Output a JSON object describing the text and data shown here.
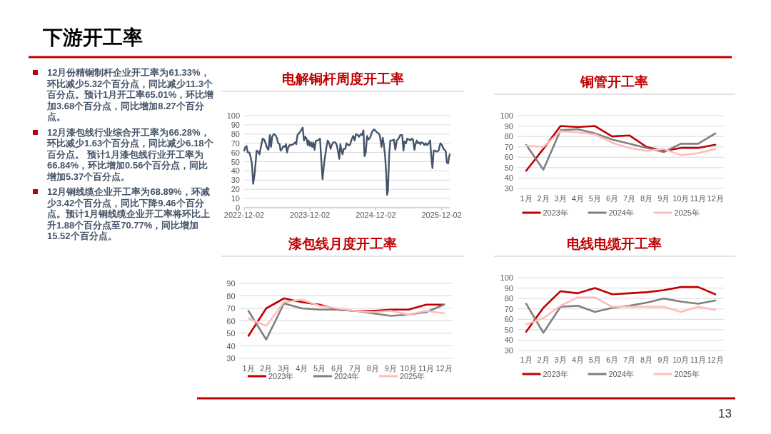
{
  "chart_data": [
    {
      "type": "other",
      "title": "下游开工率",
      "annotations": [
        "12月份精铜制杆企业开工率为61.33%，环比减少5.32个百分点，同比减少11.3个百分点。预计1月开工率65.01%，环比增加3.68个百分点，同比增加8.27个百分点。",
        "12月漆包线行业综合开工率为66.28%，环比减少1.63个百分点，同比减少6.18个百分点。 预计1月漆包线行业开工率为66.84%，环比增加0.56个百分点，同比增加5.37个百分点。",
        "12月铜线缆企业开工率为68.89%，环减少3.42个百分点，同比下降9.46个百分点。预计1月铜线缆企业开工率将环比上升1.88个百分点至70.77%，同比增加15.52个百分点。",
        "13"
      ]
    },
    {
      "type": "line",
      "title": "电解铜杆周度开工率",
      "grid": "y",
      "xlim": [
        "2022-12-02",
        "2026-01-16"
      ],
      "xticks": [
        "2022-12-02",
        "2023-12-02",
        "2024-12-02",
        "2025-12-02"
      ],
      "ylim": [
        0,
        100
      ],
      "yticks": [
        0,
        10,
        20,
        30,
        40,
        50,
        60,
        70,
        80,
        90,
        100
      ],
      "x": [
        "2022-12-02",
        "2022-12-09",
        "2022-12-15",
        "2022-12-22",
        "2022-12-31",
        "2023-01-07",
        "2023-01-14",
        "2023-01-21",
        "2023-01-30",
        "2023-02-09",
        "2023-02-17",
        "2023-02-25",
        "2023-03-04",
        "2023-03-14",
        "2023-03-23",
        "2023-03-31",
        "2023-04-08",
        "2023-04-16",
        "2023-04-24",
        "2023-04-30",
        "2023-05-07",
        "2023-05-15",
        "2023-05-24",
        "2023-06-01",
        "2023-06-09",
        "2023-06-17",
        "2023-06-22",
        "2023-06-30",
        "2023-07-08",
        "2023-07-16",
        "2023-07-22",
        "2023-07-28",
        "2023-08-03",
        "2023-08-11",
        "2023-08-22",
        "2023-09-01",
        "2023-09-11",
        "2023-09-17",
        "2023-09-24",
        "2023-10-03",
        "2023-10-14",
        "2023-10-23",
        "2023-10-30",
        "2023-11-07",
        "2023-11-13",
        "2023-11-20",
        "2023-11-25",
        "2023-12-02",
        "2023-12-08",
        "2023-12-15",
        "2023-12-21",
        "2023-12-28",
        "2024-01-04",
        "2024-01-14",
        "2024-01-27",
        "2024-02-03",
        "2024-02-10",
        "2024-02-20",
        "2024-03-02",
        "2024-03-10",
        "2024-03-18",
        "2024-03-26",
        "2024-04-01",
        "2024-04-10",
        "2024-04-21",
        "2024-04-29",
        "2024-05-07",
        "2024-05-13",
        "2024-05-19",
        "2024-05-25",
        "2024-05-31",
        "2024-06-06",
        "2024-06-15",
        "2024-06-22",
        "2024-07-01",
        "2024-07-11",
        "2024-07-20",
        "2024-07-30",
        "2024-08-06",
        "2024-08-14",
        "2024-08-23",
        "2024-08-31",
        "2024-09-09",
        "2024-09-16",
        "2024-09-24",
        "2024-09-30",
        "2024-10-07",
        "2024-10-14",
        "2024-10-22",
        "2024-10-31",
        "2024-11-10",
        "2024-11-20",
        "2024-11-29",
        "2024-12-07",
        "2024-12-16",
        "2024-12-23",
        "2024-12-29",
        "2025-01-02",
        "2025-01-09",
        "2025-01-14",
        "2025-01-22",
        "2025-01-29",
        "2025-02-02",
        "2025-02-07",
        "2025-02-14",
        "2025-02-20",
        "2025-03-03",
        "2025-03-12",
        "2025-03-20",
        "2025-03-28",
        "2025-04-07",
        "2025-04-17",
        "2025-04-27",
        "2025-05-04",
        "2025-05-10",
        "2025-05-18",
        "2025-05-25",
        "2025-06-03",
        "2025-06-12",
        "2025-06-19",
        "2025-06-26",
        "2025-07-04",
        "2025-07-10",
        "2025-07-17",
        "2025-07-23",
        "2025-07-30",
        "2025-08-06",
        "2025-08-12",
        "2025-08-23",
        "2025-08-28",
        "2025-09-05",
        "2025-09-13",
        "2025-09-21",
        "2025-09-29",
        "2025-10-04",
        "2025-10-12",
        "2025-10-19",
        "2025-10-26",
        "2025-11-05",
        "2025-11-15",
        "2025-11-25",
        "2025-12-04",
        "2025-12-12",
        "2025-12-18",
        "2025-12-25",
        "2025-12-31",
        "2026-01-07",
        "2026-01-12",
        "2026-01-16"
      ],
      "series": [
        {
          "color": "#44546a",
          "values": [
            62,
            66,
            67,
            60,
            60,
            55,
            48,
            26,
            38,
            62,
            61,
            58,
            65,
            75,
            74,
            70,
            65,
            63,
            79,
            66,
            77,
            80,
            79,
            76,
            70,
            69,
            62,
            64,
            67,
            66,
            69,
            60,
            65,
            68,
            68,
            69,
            71,
            69,
            79,
            81,
            84,
            87,
            73,
            77,
            75,
            68,
            73,
            67,
            71,
            66,
            71,
            63,
            73,
            73,
            75,
            52,
            31,
            50,
            65,
            73,
            70,
            64,
            68,
            71,
            71,
            68,
            60,
            53,
            69,
            62,
            58,
            64,
            64,
            70,
            68,
            68,
            74,
            78,
            73,
            80,
            79,
            77,
            80,
            79,
            84,
            56,
            60,
            78,
            74,
            76,
            82,
            85,
            84,
            82,
            81,
            79,
            72,
            66,
            76,
            70,
            57,
            35,
            14,
            18,
            58,
            73,
            73,
            74,
            63,
            73,
            75,
            79,
            79,
            62,
            72,
            70,
            75,
            74,
            73,
            75,
            74,
            63,
            69,
            73,
            70,
            71,
            69,
            71,
            70,
            68,
            70,
            68,
            70,
            73,
            60,
            43,
            62,
            62,
            61,
            62,
            70,
            68,
            64,
            63,
            61,
            49,
            48,
            55,
            58
          ]
        }
      ]
    },
    {
      "type": "line",
      "title": "铜管开工率",
      "grid": "y",
      "legend": "bottom",
      "categories": [
        "1月",
        "2月",
        "3月",
        "4月",
        "5月",
        "6月",
        "7月",
        "8月",
        "9月",
        "10月",
        "11月",
        "12月"
      ],
      "ylim": [
        30,
        100
      ],
      "yticks": [
        30,
        40,
        50,
        60,
        70,
        80,
        90,
        100
      ],
      "series": [
        {
          "name": "2023年",
          "color": "#c00000",
          "values": [
            47,
            68,
            90,
            89,
            90,
            80,
            81,
            70,
            66,
            69,
            69,
            72
          ]
        },
        {
          "name": "2024年",
          "color": "#808080",
          "values": [
            72,
            48,
            86,
            87,
            83,
            77,
            73,
            69,
            65,
            73,
            73,
            83
          ]
        },
        {
          "name": "2025年",
          "color": "#ffbcbc",
          "values": [
            71,
            70,
            85,
            84,
            82,
            74,
            69,
            66,
            68,
            62,
            64,
            68
          ]
        }
      ]
    },
    {
      "type": "line",
      "title": "漆包线月度开工率",
      "grid": "y",
      "legend": "bottom",
      "categories": [
        "1月",
        "2月",
        "3月",
        "4月",
        "5月",
        "6月",
        "7月",
        "8月",
        "9月",
        "10月",
        "11月",
        "12月"
      ],
      "ylim": [
        30,
        90
      ],
      "yticks": [
        30,
        40,
        50,
        60,
        70,
        80,
        90
      ],
      "series": [
        {
          "name": "2023年",
          "color": "#c00000",
          "values": [
            48,
            70,
            78,
            75,
            73,
            69,
            68,
            68,
            69,
            69,
            73,
            73
          ]
        },
        {
          "name": "2024年",
          "color": "#808080",
          "values": [
            68,
            45,
            74,
            70,
            69,
            69,
            68,
            66,
            64,
            65,
            67,
            73
          ]
        },
        {
          "name": "2025年",
          "color": "#ffbcbc",
          "values": [
            62,
            56,
            75,
            77,
            72,
            70,
            68,
            67,
            68,
            65,
            68,
            66
          ]
        }
      ]
    },
    {
      "type": "line",
      "title": "电线电缆开工率",
      "grid": "y",
      "legend": "bottom",
      "categories": [
        "1月",
        "2月",
        "3月",
        "4月",
        "5月",
        "6月",
        "7月",
        "8月",
        "9月",
        "10月",
        "11月",
        "12月"
      ],
      "ylim": [
        30,
        100
      ],
      "yticks": [
        30,
        40,
        50,
        60,
        70,
        80,
        90,
        100
      ],
      "series": [
        {
          "name": "2023年",
          "color": "#c00000",
          "values": [
            48,
            71,
            87,
            85,
            90,
            84,
            85,
            86,
            88,
            91,
            91,
            84
          ]
        },
        {
          "name": "2024年",
          "color": "#808080",
          "values": [
            75,
            47,
            72,
            73,
            67,
            71,
            73,
            76,
            80,
            77,
            75,
            78
          ]
        },
        {
          "name": "2025年",
          "color": "#ffbcbc",
          "values": [
            55,
            61,
            73,
            81,
            81,
            72,
            72,
            72,
            72,
            67,
            72,
            69
          ]
        }
      ]
    }
  ]
}
